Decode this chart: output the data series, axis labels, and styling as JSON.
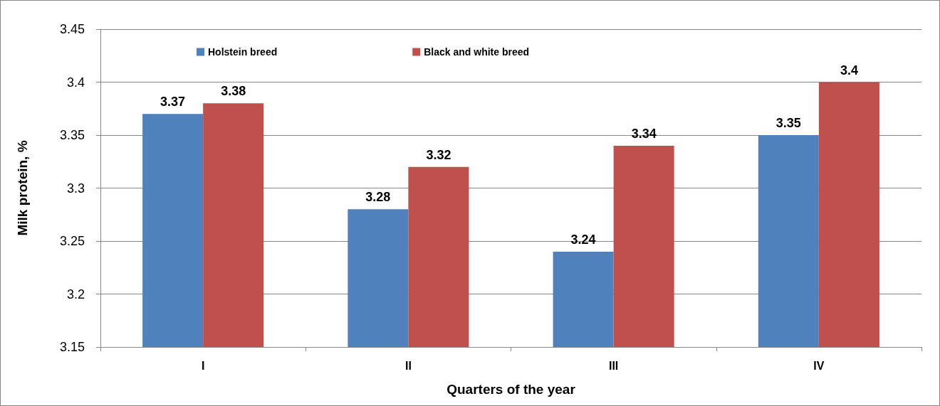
{
  "chart_data": {
    "type": "bar",
    "xlabel": "Quarters of the year",
    "ylabel": "Milk protein, %",
    "categories": [
      "I",
      "II",
      "III",
      "IV"
    ],
    "series": [
      {
        "name": "Holstein breed",
        "color": "#4f81bd",
        "values": [
          3.37,
          3.28,
          3.24,
          3.35
        ]
      },
      {
        "name": "Black and white breed",
        "color": "#c0504d",
        "values": [
          3.38,
          3.32,
          3.34,
          3.4
        ]
      }
    ],
    "ylim": [
      3.15,
      3.45
    ],
    "yticks": [
      3.15,
      3.2,
      3.25,
      3.3,
      3.35,
      3.4,
      3.45
    ],
    "grid": "y",
    "legend": "top",
    "data_labels": true
  }
}
